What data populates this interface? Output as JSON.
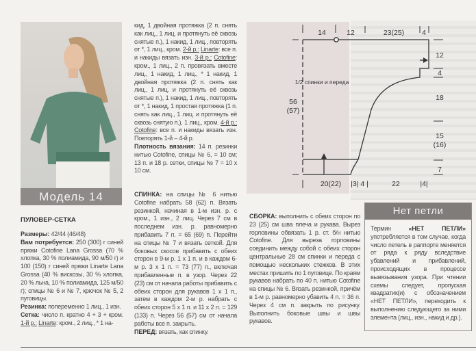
{
  "banner": "Модель 14",
  "title": "ПУЛОВЕР-СЕТКА",
  "col1": {
    "sizes_label": "Размеры:",
    "sizes": " 42/44 (46/48)",
    "materials_label": "Вам потребуется:",
    "materials": " 250 (300) г синей пряжи Cotofine Lana Grossa (70 % хлопка, 30 % полиамида, 90 м/50 г) и 100 (150) г синей пряжи Linarte Lana Grossa (40 % вискозы, 30 % хлопка, 20 % льна, 10 % полиамида, 125 м/50 г); спицы № 6 и № 7, крючок № 5, 2 пуговицы.",
    "rib_label": "Резинка:",
    "rib": " попеременно 1 лиц., 1 изн.",
    "mesh_label": "Сетка:",
    "mesh": " число п. кратно 4 + 3 + кром.",
    "row1_label": "1-й р.:",
    "row1_yarn": "Linarte",
    "row1_text": ": кром., 2 лиц., * 1 на-"
  },
  "col2": {
    "cont1": "кид, 1 двойная протяжка (2 п. снять как лиц., 1 лиц. и протянуть её сквозь снятые п.), 1 накид, 1 лиц., повторять от *, 1 лиц., кром. ",
    "row2_label": "2-й р.:",
    "row2_yarn": "Linarte",
    "row2_text": ": все п. и накиды вязать изн. ",
    "row3_label": "3-й р.:",
    "row3_yarn": "Cotofine",
    "row3_text": ": кром., 1 лиц., 2 п. провязать вместе лиц., 1 накид, 1 лиц., * 1 накид, 1 двойная протяжка (2 п. снять как лиц., 1 лиц. и протянуть её сквозь снятые п.), 1 накид, 1 лиц., повторять от *, 1 накид, 1 простая протяжка (1 п. снять как лиц., 1 лиц. и протянуть её сквозь снятую п.), 1 лиц., кром. ",
    "row4_label": "4-й р.:",
    "row4_yarn": "Cotofine",
    "row4_text": ": все п. и накиды вязать изн. Повторять 1-й – 4-й р.",
    "gauge_label": "Плотность вязания:",
    "gauge": " 14 п. резинки нитью Cotofine, спицы № 6, = 10 см; 13 п. и 18 р. сетки, спицы № 7 = 10 х 10 см.",
    "back_label": "СПИНКА:",
    "back": " на спицы № 6 нитью Cotofine набрать 58 (62) п. Вязать резинкой, начиная в 1-м изн. р. с кром., 1 изн., 2 лиц. Через 7 см в последнем изн. р. равномерно прибавить 7 п. = 65 (69) п. Перейти на спицы № 7 и вязать сеткой. Для боковых скосов прибавить с обеих сторон в 9-м р. 1 х 1 п. и в каждом 6-м р. 3 х 1 п. = 73 (77) п., включая прибавленные п. в узор. Через 22 (23) см от начала работы прибавить с обеих сторон для рукавов 1 х 1 п., затем в каждом 2-м р. набрать с обеих сторон 5 х 1 п. и 11 х 2 п. = 129 (133) п. Через 56 (57) см от начала работы все п. закрыть.",
    "front_label": "ПЕРЕД:",
    "front": " вязать, как спинку."
  },
  "col3": {
    "assembly_label": "СБОРКА:",
    "assembly": " выполнить с обеих сторон по 23 (25) см шва плеча и рукава. Вырез горловины обвязать 1 р. ст. б/н нитью Cotofine. Для выреза горловины соединить между собой с обеих сторон центральные 28 см спинки и переда с помощью нескольких стежков. В этих местах пришить по 1 пуговице. По краям рукавов набрать по 40 п. нитью Cotofine на спицы № 6. Вязать резинкой, причём в 1-м р. равномерно убавить 4 п. = 36 п. Через 4 см п. закрыть по рисунку. Выполнить боковые швы и швы рукавов."
  },
  "box": {
    "title": "Нет петли",
    "text_start": "Термин ",
    "term": "«НЕТ ПЕТЛИ»",
    "text_rest": " употребляется в том случае, когда число петель в раппорте меняется от ряда к ряду вследствие убавлений и прибавлений, происходящих в процессе вывязывания узора. При чтении схемы следует, пропуская квадратик(и) с обозначением «НЕТ ПЕТЛИ», переходить к выполнению следующего за ними элемента (лиц., изн., накид и др.)."
  },
  "diagram": {
    "caption": "1/2 спинки и переда",
    "top": [
      "14",
      "12",
      "23(25)",
      "4"
    ],
    "right": [
      "12",
      "4",
      "18",
      "15",
      "(16)",
      "7"
    ],
    "left": [
      "56",
      "(57)"
    ],
    "bottom": [
      "20(22)",
      "|3| 4 |",
      "22",
      "|4|"
    ]
  }
}
